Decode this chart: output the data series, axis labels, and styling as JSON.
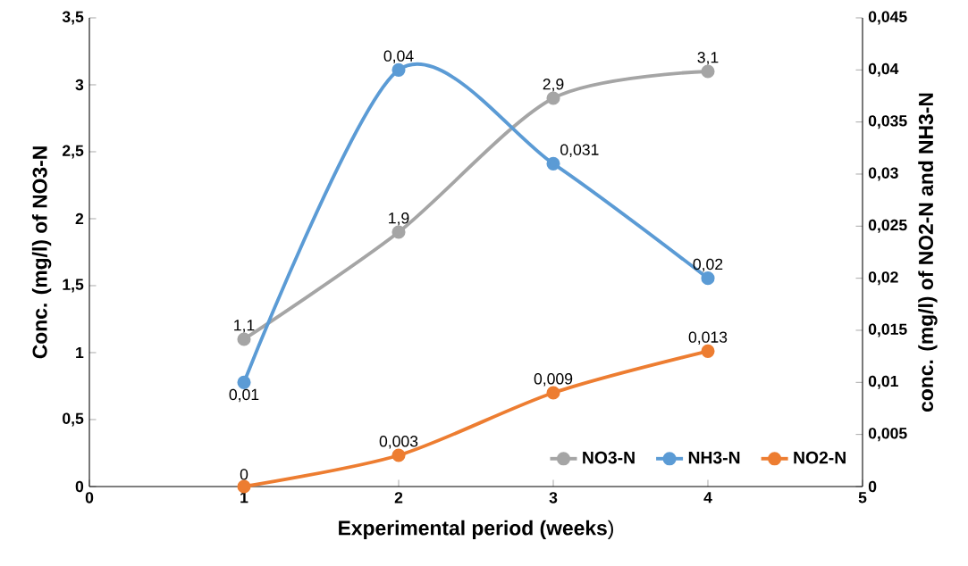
{
  "chart_data": {
    "type": "line",
    "xlabel": "**Experimental period (weeks**)",
    "ylabel": "Conc. (mg/l) of NO3-N",
    "y2label": "conc. (mg/l) of NO2-N and NH3-N",
    "x": [
      1,
      2,
      3,
      4
    ],
    "series": [
      {
        "name": "NO3-N",
        "color": "#a5a5a5",
        "values": [
          1.1,
          1.9,
          2.9,
          3.1
        ],
        "value_labels": [
          "1,1",
          "1,9",
          "2,9",
          "3,1"
        ]
      },
      {
        "name": "NH3-N",
        "color": "#5b9bd5",
        "axis": "y2",
        "values": [
          0.01,
          0.04,
          0.031,
          0.02
        ],
        "value_labels": [
          "0,01",
          "0,04",
          "0,031",
          "0,02"
        ]
      },
      {
        "name": "NO2-N",
        "color": "#ed7d31",
        "axis": "y2",
        "values": [
          0,
          0.003,
          0.009,
          0.013
        ],
        "value_labels": [
          "0",
          "0,003",
          "0,009",
          "0,013"
        ]
      }
    ],
    "xlim": [
      0,
      5
    ],
    "xticks": [
      0,
      1,
      2,
      3,
      4,
      5
    ],
    "ylim": [
      0,
      3.5
    ],
    "yticks": [
      0,
      {
        "value": 0.5,
        "label": "0,5"
      },
      1,
      {
        "value": 1.5,
        "label": "1,5"
      },
      2,
      {
        "value": 2.5,
        "label": "2,5"
      },
      3,
      {
        "value": 3.5,
        "label": "3,5"
      }
    ],
    "y2lim": [
      0,
      0.045
    ],
    "y2ticks": [
      0,
      {
        "value": 0.005,
        "label": "0,005"
      },
      {
        "value": 0.01,
        "label": "0,01"
      },
      {
        "value": 0.015,
        "label": "0,015"
      },
      {
        "value": 0.02,
        "label": "0,02"
      },
      {
        "value": 0.025,
        "label": "0,025"
      },
      {
        "value": 0.03,
        "label": "0,03"
      },
      {
        "value": 0.035,
        "label": "0,035"
      },
      {
        "value": 0.04,
        "label": "0,04"
      },
      {
        "value": 0.045,
        "label": "0,045"
      }
    ],
    "grid": false,
    "legend": "bottom right",
    "marker": "circle",
    "line_style": "solid"
  }
}
